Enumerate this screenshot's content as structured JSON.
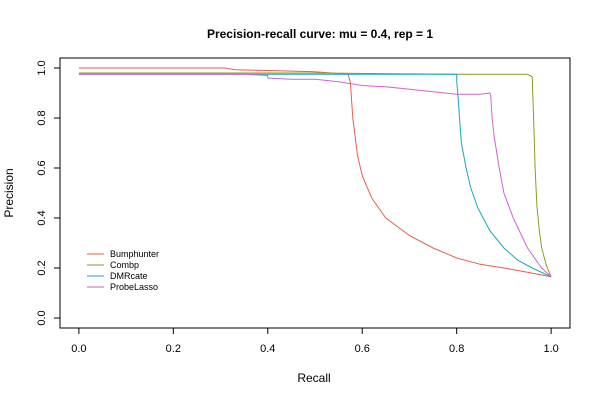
{
  "chart_data": {
    "type": "line",
    "title": "Precision-recall curve: mu = 0.4, rep = 1",
    "xlabel": "Recall",
    "ylabel": "Precision",
    "xlim": [
      -0.04,
      1.04
    ],
    "ylim": [
      -0.04,
      1.04
    ],
    "xticks": [
      0.0,
      0.2,
      0.4,
      0.6,
      0.8,
      1.0
    ],
    "xtick_labels": [
      "0.0",
      "0.2",
      "0.4",
      "0.6",
      "0.8",
      "1.0"
    ],
    "yticks": [
      0.0,
      0.2,
      0.4,
      0.6,
      0.8,
      1.0
    ],
    "ytick_labels": [
      "0.0",
      "0.2",
      "0.4",
      "0.6",
      "0.8",
      "1.0"
    ],
    "grid": false,
    "legend_position": "bottom-left",
    "series": [
      {
        "name": "Bumphunter",
        "color": "#e0614f",
        "points": [
          [
            0.0,
            1.0
          ],
          [
            0.31,
            1.0
          ],
          [
            0.33,
            0.993
          ],
          [
            0.4,
            0.99
          ],
          [
            0.5,
            0.985
          ],
          [
            0.57,
            0.975
          ],
          [
            0.575,
            0.94
          ],
          [
            0.58,
            0.8
          ],
          [
            0.59,
            0.65
          ],
          [
            0.6,
            0.57
          ],
          [
            0.62,
            0.48
          ],
          [
            0.65,
            0.4
          ],
          [
            0.7,
            0.33
          ],
          [
            0.75,
            0.28
          ],
          [
            0.8,
            0.24
          ],
          [
            0.85,
            0.215
          ],
          [
            0.9,
            0.2
          ],
          [
            0.95,
            0.183
          ],
          [
            1.0,
            0.165
          ]
        ]
      },
      {
        "name": "Combp",
        "color": "#8c9a22",
        "points": [
          [
            0.0,
            0.98
          ],
          [
            0.5,
            0.98
          ],
          [
            0.8,
            0.975
          ],
          [
            0.95,
            0.975
          ],
          [
            0.96,
            0.965
          ],
          [
            0.963,
            0.8
          ],
          [
            0.966,
            0.6
          ],
          [
            0.97,
            0.45
          ],
          [
            0.975,
            0.35
          ],
          [
            0.98,
            0.28
          ],
          [
            0.99,
            0.21
          ],
          [
            1.0,
            0.165
          ]
        ]
      },
      {
        "name": "DMRcate",
        "color": "#1aa5b8",
        "points": [
          [
            0.0,
            0.975
          ],
          [
            0.5,
            0.975
          ],
          [
            0.8,
            0.975
          ],
          [
            0.8,
            0.95
          ],
          [
            0.803,
            0.88
          ],
          [
            0.806,
            0.8
          ],
          [
            0.81,
            0.7
          ],
          [
            0.82,
            0.6
          ],
          [
            0.83,
            0.52
          ],
          [
            0.845,
            0.44
          ],
          [
            0.87,
            0.35
          ],
          [
            0.9,
            0.28
          ],
          [
            0.93,
            0.23
          ],
          [
            0.96,
            0.2
          ],
          [
            1.0,
            0.165
          ]
        ]
      },
      {
        "name": "ProbeLasso",
        "color": "#cc66cc",
        "points": [
          [
            0.0,
            0.975
          ],
          [
            0.35,
            0.975
          ],
          [
            0.4,
            0.97
          ],
          [
            0.4,
            0.96
          ],
          [
            0.45,
            0.955
          ],
          [
            0.5,
            0.955
          ],
          [
            0.55,
            0.945
          ],
          [
            0.6,
            0.93
          ],
          [
            0.65,
            0.925
          ],
          [
            0.7,
            0.915
          ],
          [
            0.75,
            0.905
          ],
          [
            0.8,
            0.895
          ],
          [
            0.85,
            0.895
          ],
          [
            0.87,
            0.9
          ],
          [
            0.872,
            0.89
          ],
          [
            0.875,
            0.8
          ],
          [
            0.88,
            0.72
          ],
          [
            0.89,
            0.6
          ],
          [
            0.9,
            0.5
          ],
          [
            0.92,
            0.4
          ],
          [
            0.95,
            0.28
          ],
          [
            0.98,
            0.2
          ],
          [
            1.0,
            0.165
          ]
        ]
      }
    ]
  }
}
